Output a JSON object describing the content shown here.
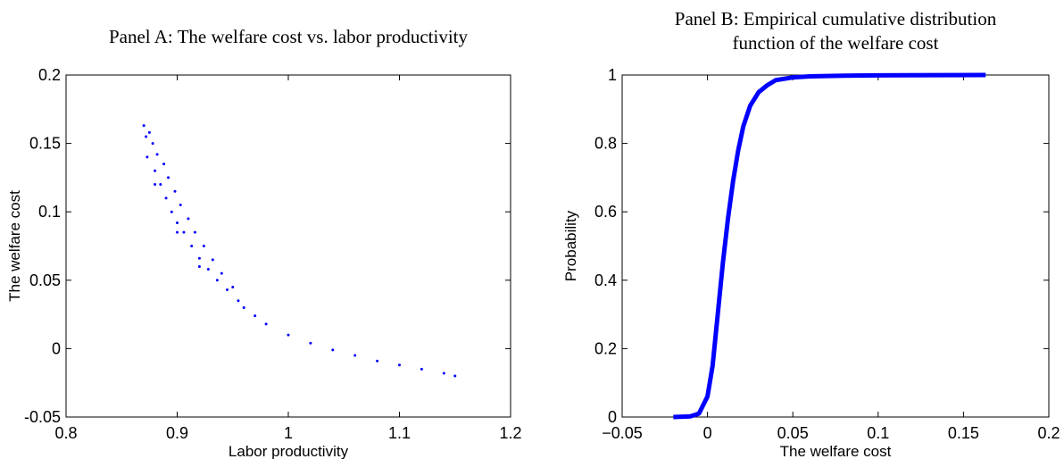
{
  "chart_data": [
    {
      "type": "scatter",
      "title": "Panel A: The welfare cost vs. labor productivity",
      "xlabel": "Labor productivity",
      "ylabel": "The welfare cost",
      "color": "#0000ff",
      "x": [
        0.87,
        0.872,
        0.875,
        0.873,
        0.878,
        0.88,
        0.882,
        0.885,
        0.888,
        0.89,
        0.892,
        0.895,
        0.898,
        0.9,
        0.903,
        0.906,
        0.91,
        0.913,
        0.916,
        0.92,
        0.924,
        0.928,
        0.932,
        0.936,
        0.94,
        0.945,
        0.95,
        0.955,
        0.96,
        0.97,
        0.98,
        1.0,
        1.02,
        1.04,
        1.06,
        1.08,
        1.1,
        1.12,
        1.14,
        1.15,
        0.88,
        0.9,
        0.92
      ],
      "values": [
        0.163,
        0.155,
        0.158,
        0.14,
        0.15,
        0.13,
        0.142,
        0.12,
        0.135,
        0.11,
        0.125,
        0.1,
        0.115,
        0.092,
        0.105,
        0.085,
        0.095,
        0.075,
        0.085,
        0.066,
        0.075,
        0.058,
        0.065,
        0.05,
        0.055,
        0.043,
        0.045,
        0.035,
        0.03,
        0.024,
        0.018,
        0.01,
        0.004,
        -0.001,
        -0.005,
        -0.009,
        -0.012,
        -0.015,
        -0.018,
        -0.02,
        0.12,
        0.085,
        0.06
      ],
      "xlim": [
        0.8,
        1.2
      ],
      "xticks": [
        0.8,
        0.9,
        1,
        1.1,
        1.2
      ],
      "ylim": [
        -0.05,
        0.2
      ],
      "yticks": [
        -0.05,
        0,
        0.05,
        0.1,
        0.15,
        0.2
      ]
    },
    {
      "type": "line",
      "title": [
        "Panel B: Empirical cumulative distribution",
        "function of the welfare cost"
      ],
      "xlabel": "The welfare cost",
      "ylabel": "Probability",
      "color": "#0000ff",
      "x": [
        -0.02,
        -0.01,
        -0.005,
        0,
        0.003,
        0.006,
        0.009,
        0.012,
        0.015,
        0.018,
        0.021,
        0.025,
        0.03,
        0.035,
        0.04,
        0.05,
        0.06,
        0.08,
        0.1,
        0.163
      ],
      "values": [
        0,
        0.002,
        0.01,
        0.06,
        0.15,
        0.3,
        0.45,
        0.58,
        0.69,
        0.78,
        0.85,
        0.91,
        0.95,
        0.97,
        0.985,
        0.993,
        0.996,
        0.998,
        0.999,
        1
      ],
      "xlim": [
        -0.05,
        0.2
      ],
      "xticks": [
        {
          "value": -0.05,
          "label": "−0.05"
        },
        0,
        0.05,
        0.1,
        0.15,
        0.2
      ],
      "ylim": [
        0,
        1
      ],
      "yticks": [
        0,
        0.2,
        0.4,
        0.6,
        0.8,
        1
      ]
    }
  ]
}
